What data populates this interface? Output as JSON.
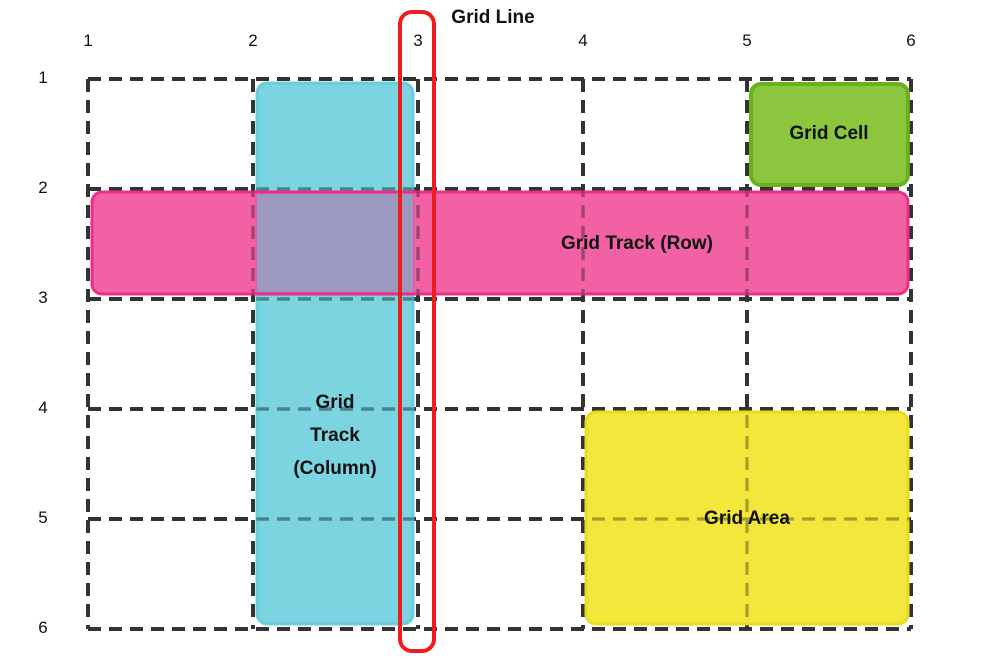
{
  "diagram": {
    "title_label": "Grid Line",
    "column_line_numbers": [
      "1",
      "2",
      "3",
      "4",
      "5",
      "6"
    ],
    "row_line_numbers": [
      "1",
      "2",
      "3",
      "4",
      "5",
      "6"
    ],
    "regions": {
      "grid_cell": {
        "label": "Grid Cell",
        "fill": "#8cc63f",
        "stroke": "#6bb11e"
      },
      "grid_track_row": {
        "label": "Grid Track (Row)",
        "fill": "#f0509a",
        "stroke": "#e8308a"
      },
      "grid_track_column": {
        "label_lines": [
          "Grid",
          "Track",
          "(Column)"
        ],
        "fill": "#5ecbd9",
        "stroke": "#5ecbd9"
      },
      "grid_area": {
        "label": "Grid Area",
        "fill": "#f2e52a",
        "stroke": "#e8dc1c"
      },
      "grid_line_highlight": {
        "stroke": "#ee1c1c"
      }
    },
    "grid_line_color": "#333333"
  }
}
